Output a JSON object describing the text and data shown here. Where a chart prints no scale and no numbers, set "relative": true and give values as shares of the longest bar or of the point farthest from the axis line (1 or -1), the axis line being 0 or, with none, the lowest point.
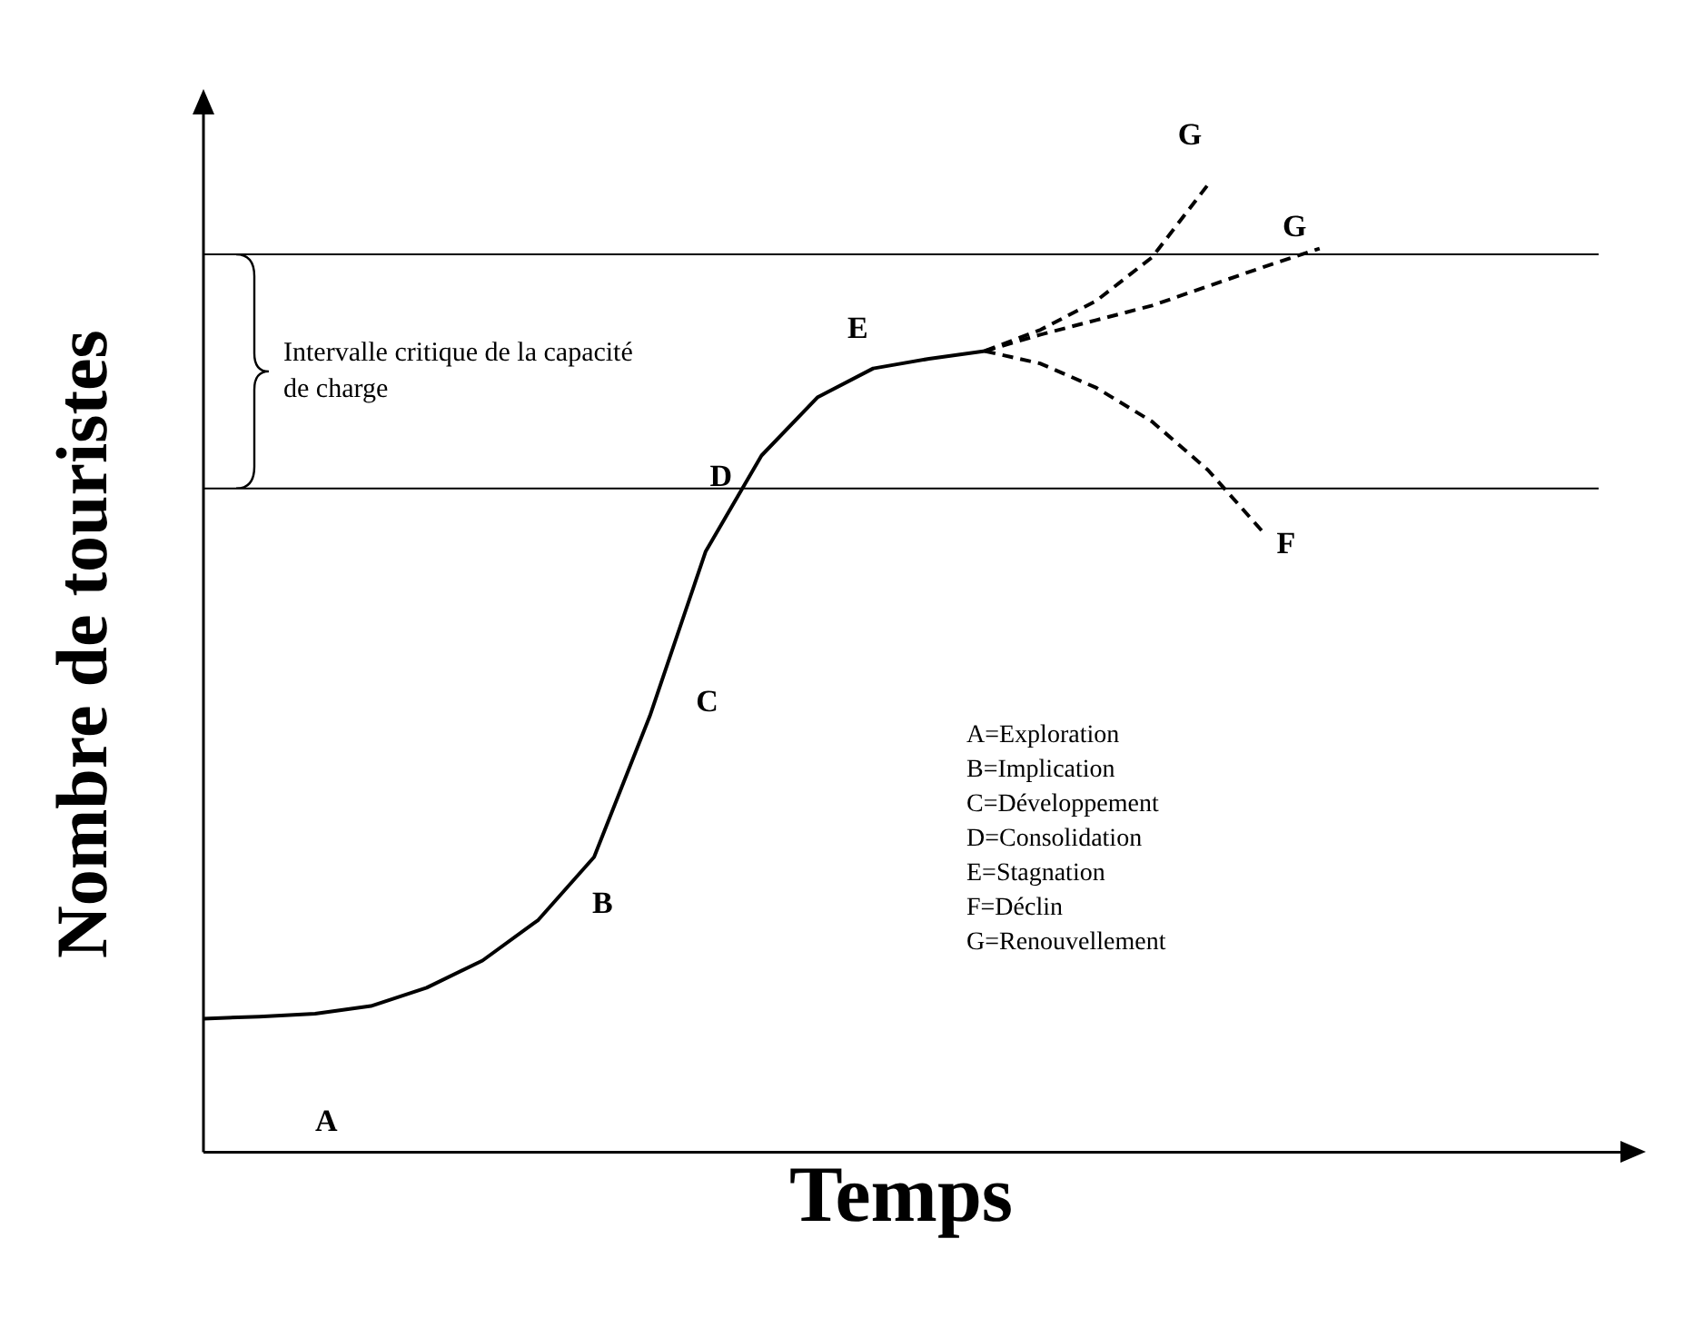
{
  "chart_data": {
    "type": "line",
    "relative": true,
    "xlabel": "Temps",
    "ylabel": "Nombre de touristes",
    "tick_labels": false,
    "grid": false,
    "legend": false,
    "marker": "none",
    "categories": [
      null,
      null,
      null,
      null,
      null,
      null,
      null,
      null,
      null,
      null,
      null,
      null,
      null,
      null,
      null,
      null,
      null,
      null,
      null,
      null,
      null,
      null,
      null,
      null,
      null,
      null
    ],
    "series": [
      {
        "color": "#000000",
        "line_style": "solid",
        "values": [
          0.138,
          0.14,
          0.143,
          0.151,
          0.17,
          0.198,
          0.24,
          0.305,
          0.451,
          0.621,
          0.72,
          0.78,
          0.81,
          0.82,
          0.828,
          null,
          null,
          null,
          null,
          null,
          null,
          null,
          null,
          null,
          null,
          null
        ]
      },
      {
        "color": "#000000",
        "line_style": "dashed",
        "values": [
          null,
          null,
          null,
          null,
          null,
          null,
          null,
          null,
          null,
          null,
          null,
          null,
          null,
          null,
          0.828,
          0.85,
          0.88,
          0.925,
          1,
          null,
          null,
          null,
          null,
          null,
          null,
          null
        ]
      },
      {
        "color": "#000000",
        "line_style": "dashed",
        "values": [
          null,
          null,
          null,
          null,
          null,
          null,
          null,
          null,
          null,
          null,
          null,
          null,
          null,
          null,
          0.828,
          0.845,
          0.86,
          0.875,
          0.895,
          0.915,
          0.934,
          null,
          null,
          null,
          null,
          null
        ]
      },
      {
        "color": "#000000",
        "line_style": "dashed",
        "values": [
          null,
          null,
          null,
          null,
          null,
          null,
          null,
          null,
          null,
          null,
          null,
          null,
          null,
          null,
          0.828,
          0.815,
          0.79,
          0.755,
          0.705,
          0.64,
          null,
          null,
          null,
          null,
          null,
          null
        ]
      }
    ],
    "ref_lines": [
      {
        "axis": "y",
        "value": 0.928
      },
      {
        "axis": "y",
        "value": 0.686
      }
    ],
    "annotations": [
      "A",
      "B",
      "C",
      "D",
      "E",
      "F",
      "G",
      "G",
      "Intervalle critique de la capacité de charge",
      "A=Exploration",
      "B=Implication",
      "C=Développement",
      "D=Consolidation",
      "E=Stagnation",
      "F=Déclin",
      "G=Renouvellement"
    ]
  }
}
